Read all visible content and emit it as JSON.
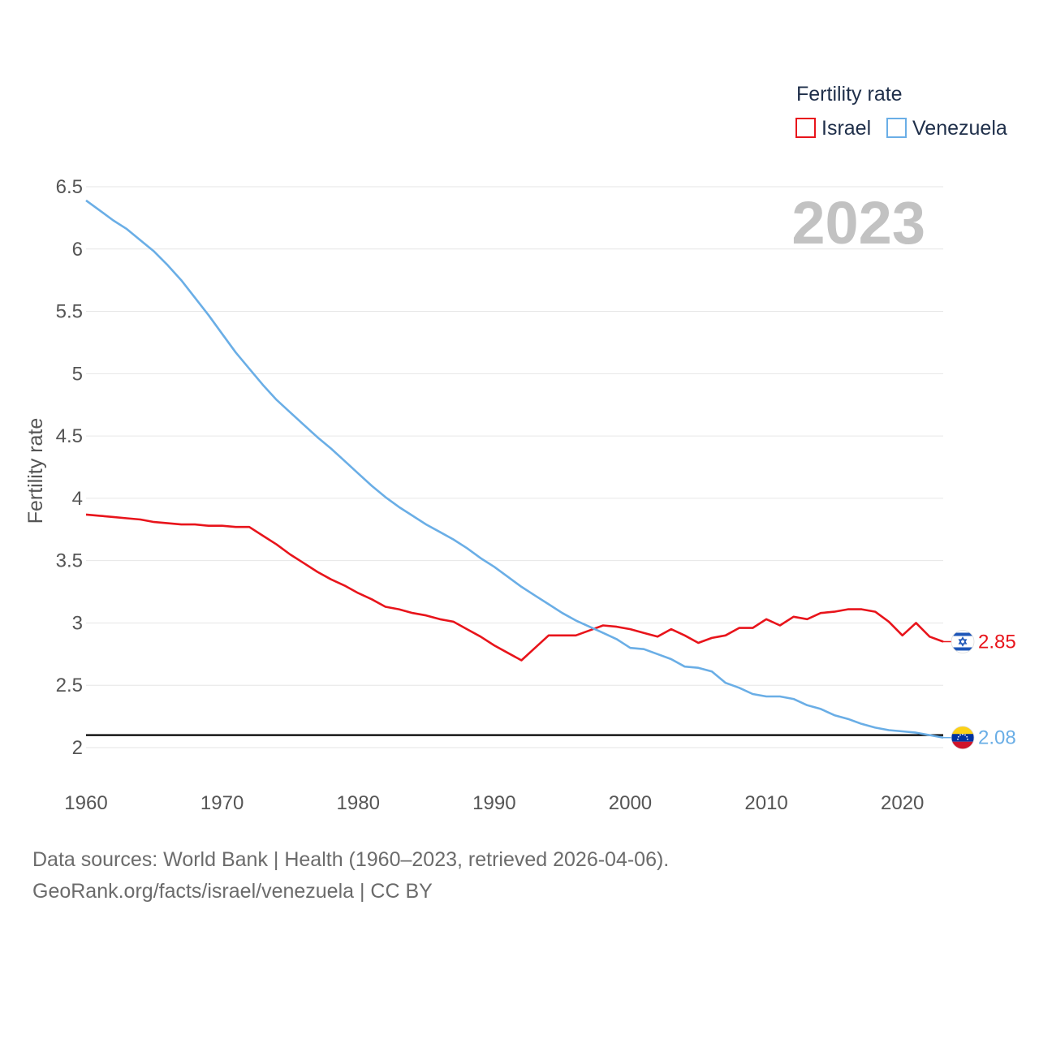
{
  "chart_data": {
    "type": "line",
    "title": "",
    "ylabel": "Fertility rate",
    "xlabel": "",
    "xlim": [
      1960,
      2023
    ],
    "ylim": [
      2,
      6.5
    ],
    "x_ticks": [
      "1960",
      "1970",
      "1980",
      "1990",
      "2000",
      "2010",
      "2020"
    ],
    "y_ticks": [
      "2",
      "2.5",
      "3",
      "3.5",
      "4",
      "4.5",
      "5",
      "5.5",
      "6",
      "6.5"
    ],
    "year_label": "2023",
    "reference_line": 2.1,
    "legend": {
      "title": "Fertility rate",
      "position": "top-right"
    },
    "x": [
      1960,
      1961,
      1962,
      1963,
      1964,
      1965,
      1966,
      1967,
      1968,
      1969,
      1970,
      1971,
      1972,
      1973,
      1974,
      1975,
      1976,
      1977,
      1978,
      1979,
      1980,
      1981,
      1982,
      1983,
      1984,
      1985,
      1986,
      1987,
      1988,
      1989,
      1990,
      1991,
      1992,
      1993,
      1994,
      1995,
      1996,
      1997,
      1998,
      1999,
      2000,
      2001,
      2002,
      2003,
      2004,
      2005,
      2006,
      2007,
      2008,
      2009,
      2010,
      2011,
      2012,
      2013,
      2014,
      2015,
      2016,
      2017,
      2018,
      2019,
      2020,
      2021,
      2022,
      2023
    ],
    "series": [
      {
        "name": "Israel",
        "color": "#e8141b",
        "flag": "flag-israel",
        "end_label": "2.85",
        "values": [
          3.87,
          3.86,
          3.85,
          3.84,
          3.83,
          3.81,
          3.8,
          3.79,
          3.79,
          3.78,
          3.78,
          3.77,
          3.77,
          3.7,
          3.63,
          3.55,
          3.48,
          3.41,
          3.35,
          3.3,
          3.24,
          3.19,
          3.13,
          3.11,
          3.08,
          3.06,
          3.03,
          3.01,
          2.95,
          2.89,
          2.82,
          2.76,
          2.7,
          2.8,
          2.9,
          2.9,
          2.9,
          2.94,
          2.98,
          2.97,
          2.95,
          2.92,
          2.89,
          2.95,
          2.9,
          2.84,
          2.88,
          2.9,
          2.96,
          2.96,
          3.03,
          2.98,
          3.05,
          3.03,
          3.08,
          3.09,
          3.11,
          3.11,
          3.09,
          3.01,
          2.9,
          3.0,
          2.89,
          2.85
        ]
      },
      {
        "name": "Venezuela",
        "color": "#6aaee6",
        "flag": "flag-venezuela",
        "end_label": "2.08",
        "values": [
          6.39,
          6.31,
          6.23,
          6.16,
          6.07,
          5.98,
          5.87,
          5.75,
          5.61,
          5.47,
          5.32,
          5.17,
          5.04,
          4.91,
          4.79,
          4.69,
          4.59,
          4.49,
          4.4,
          4.3,
          4.2,
          4.1,
          4.01,
          3.93,
          3.86,
          3.79,
          3.73,
          3.67,
          3.6,
          3.52,
          3.45,
          3.37,
          3.29,
          3.22,
          3.15,
          3.08,
          3.02,
          2.97,
          2.92,
          2.87,
          2.8,
          2.79,
          2.75,
          2.71,
          2.65,
          2.64,
          2.61,
          2.52,
          2.48,
          2.43,
          2.41,
          2.41,
          2.39,
          2.34,
          2.31,
          2.26,
          2.23,
          2.19,
          2.16,
          2.14,
          2.13,
          2.12,
          2.1,
          2.08
        ]
      }
    ]
  },
  "footer": {
    "sources": "Data sources: World Bank | Health (1960–2023, retrieved 2026-04-06).",
    "link": "GeoRank.org/facts/israel/venezuela | CC BY"
  }
}
